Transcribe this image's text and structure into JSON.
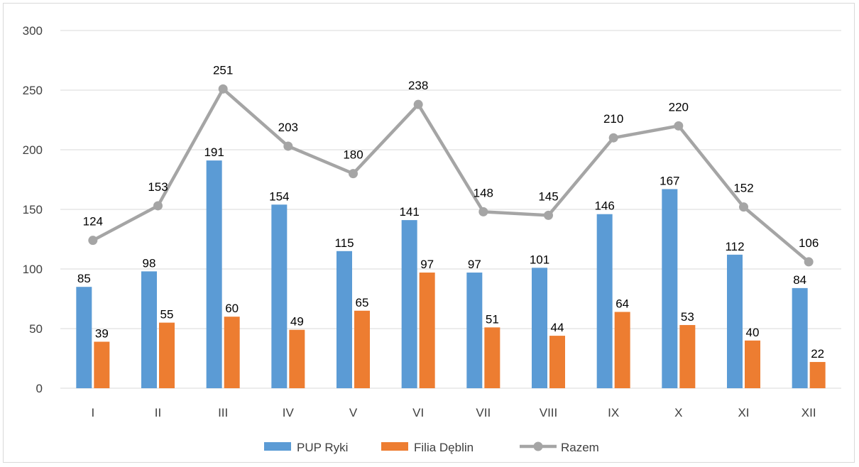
{
  "chart_data": {
    "type": "bar",
    "categories": [
      "I",
      "II",
      "III",
      "IV",
      "V",
      "VI",
      "VII",
      "VIII",
      "IX",
      "X",
      "XI",
      "XII"
    ],
    "series": [
      {
        "name": "PUP Ryki",
        "type": "bar",
        "color": "#5b9bd5",
        "values": [
          85,
          98,
          191,
          154,
          115,
          141,
          97,
          101,
          146,
          167,
          112,
          84
        ]
      },
      {
        "name": "Filia Dęblin",
        "type": "bar",
        "color": "#ed7d31",
        "values": [
          39,
          55,
          60,
          49,
          65,
          97,
          51,
          44,
          64,
          53,
          40,
          22
        ]
      },
      {
        "name": "Razem",
        "type": "line",
        "color": "#a5a5a5",
        "values": [
          124,
          153,
          251,
          203,
          180,
          238,
          148,
          145,
          210,
          220,
          152,
          106
        ]
      }
    ],
    "yticks": [
      0,
      50,
      100,
      150,
      200,
      250,
      300
    ],
    "ylim": [
      0,
      300
    ],
    "grid": true,
    "legend": "bottom-center",
    "data_labels": true
  }
}
